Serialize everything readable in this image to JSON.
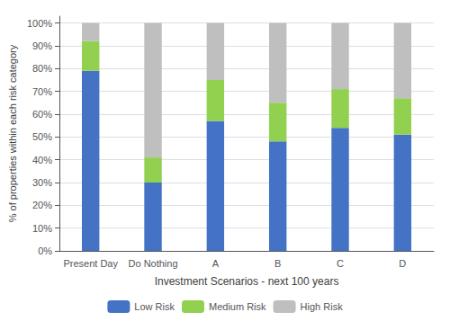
{
  "chart_data": {
    "type": "bar",
    "stacked": true,
    "categories": [
      "Present Day",
      "Do Nothing",
      "A",
      "B",
      "C",
      "D"
    ],
    "series": [
      {
        "name": "Low Risk",
        "color": "#4472C4",
        "values": [
          79,
          30,
          57,
          48,
          54,
          51
        ]
      },
      {
        "name": "Medium Risk",
        "color": "#92D050",
        "values": [
          13,
          11,
          18,
          17,
          17,
          16
        ]
      },
      {
        "name": "High Risk",
        "color": "#BFBFBF",
        "values": [
          8,
          59,
          25,
          35,
          29,
          33
        ]
      }
    ],
    "xlabel": "Investment Scenarios - next 100 years",
    "ylabel": "% of properties within each risk category",
    "ylim": [
      0,
      103
    ],
    "yticks": [
      {
        "value": 0,
        "label": "0%"
      },
      {
        "value": 10,
        "label": "10%"
      },
      {
        "value": 20,
        "label": "20%"
      },
      {
        "value": 30,
        "label": "30%"
      },
      {
        "value": 40,
        "label": "40%"
      },
      {
        "value": 50,
        "label": "50%"
      },
      {
        "value": 60,
        "label": "60%"
      },
      {
        "value": 70,
        "label": "70%"
      },
      {
        "value": 80,
        "label": "80%"
      },
      {
        "value": 90,
        "label": "90%"
      },
      {
        "value": 100,
        "label": "100%"
      }
    ],
    "grid": true,
    "legend": "bottom"
  }
}
